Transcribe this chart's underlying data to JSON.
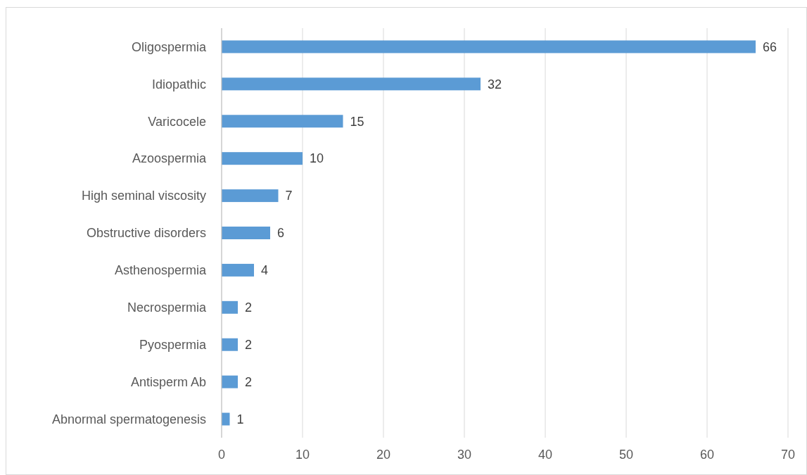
{
  "chart_data": {
    "type": "bar",
    "orientation": "horizontal",
    "categories": [
      "Oligospermia",
      "Idiopathic",
      "Varicocele",
      "Azoospermia",
      "High seminal viscosity",
      "Obstructive disorders",
      "Asthenospermia",
      "Necrospermia",
      "Pyospermia",
      "Antisperm Ab",
      "Abnormal spermatogenesis"
    ],
    "values": [
      66,
      32,
      15,
      10,
      7,
      6,
      4,
      2,
      2,
      2,
      1
    ],
    "color": "#5b9bd5",
    "xlim": [
      0,
      70
    ],
    "xticks": [
      0,
      10,
      20,
      30,
      40,
      50,
      60,
      70
    ],
    "grid": "x",
    "data_labels": true
  }
}
